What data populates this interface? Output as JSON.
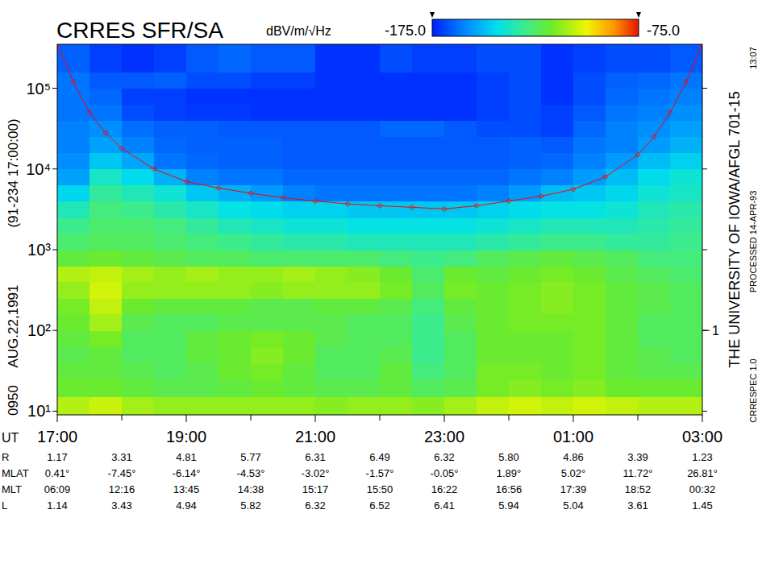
{
  "chart_data": {
    "type": "heatmap",
    "title": "CRRES SFR/SA",
    "x_label": "UT",
    "log": "y",
    "xlim": [
      17,
      27
    ],
    "xticks": [
      {
        "value": 17,
        "label": "17:00"
      },
      {
        "value": 19,
        "label": "19:00"
      },
      {
        "value": 21,
        "label": "21:00"
      },
      {
        "value": 23,
        "label": "23:00"
      },
      {
        "value": 25,
        "label": "01:00"
      },
      {
        "value": 27,
        "label": "03:00"
      }
    ],
    "x_minor_ticks": [
      18,
      20,
      22,
      24,
      26
    ],
    "ylim": [
      9,
      350000
    ],
    "yticks": [
      {
        "value": 10,
        "label": "10¹"
      },
      {
        "value": 100,
        "label": "10²"
      },
      {
        "value": 1000,
        "label": "10³"
      },
      {
        "value": 10000,
        "label": "10⁴"
      },
      {
        "value": 100000,
        "label": "10⁵"
      }
    ],
    "y2lim": [
      0.09,
      3500
    ],
    "y2ticks": [
      1
    ],
    "x_edges": [
      17,
      17.5,
      18,
      18.5,
      19,
      19.5,
      20,
      20.5,
      21,
      21.5,
      22,
      22.5,
      23,
      23.5,
      24,
      24.5,
      25,
      25.5,
      26,
      26.5,
      27
    ],
    "y_edges": [
      9,
      15,
      25,
      40,
      63,
      100,
      160,
      250,
      400,
      630,
      1000,
      1600,
      2500,
      4000,
      6300,
      10000,
      16000,
      25000,
      40000,
      63000,
      100000,
      160000,
      350000
    ],
    "cells": [
      [
        -108,
        -105,
        -110,
        -112,
        -112,
        -112,
        -112,
        -112,
        -114,
        -112,
        -112,
        -114,
        -110,
        -106,
        -104,
        -106,
        -104,
        -106,
        -108,
        -108
      ],
      [
        -118,
        -118,
        -120,
        -122,
        -122,
        -120,
        -118,
        -120,
        -122,
        -122,
        -120,
        -124,
        -122,
        -116,
        -114,
        -116,
        -114,
        -118,
        -118,
        -118
      ],
      [
        -120,
        -120,
        -122,
        -124,
        -122,
        -118,
        -116,
        -120,
        -124,
        -124,
        -120,
        -128,
        -124,
        -116,
        -116,
        -118,
        -116,
        -120,
        -122,
        -122
      ],
      [
        -122,
        -120,
        -124,
        -124,
        -120,
        -118,
        -114,
        -118,
        -124,
        -124,
        -122,
        -130,
        -124,
        -118,
        -118,
        -118,
        -116,
        -120,
        -122,
        -124
      ],
      [
        -120,
        -116,
        -124,
        -124,
        -120,
        -118,
        -116,
        -118,
        -122,
        -124,
        -124,
        -130,
        -124,
        -118,
        -118,
        -118,
        -116,
        -120,
        -124,
        -124
      ],
      [
        -118,
        -110,
        -122,
        -124,
        -124,
        -122,
        -122,
        -122,
        -122,
        -124,
        -124,
        -130,
        -122,
        -118,
        -116,
        -116,
        -116,
        -120,
        -124,
        -124
      ],
      [
        -116,
        -106,
        -118,
        -120,
        -120,
        -120,
        -122,
        -122,
        -120,
        -120,
        -122,
        -128,
        -120,
        -118,
        -116,
        -114,
        -116,
        -120,
        -122,
        -124
      ],
      [
        -112,
        -104,
        -112,
        -112,
        -112,
        -112,
        -114,
        -112,
        -112,
        -112,
        -116,
        -124,
        -116,
        -118,
        -116,
        -114,
        -116,
        -120,
        -122,
        -124
      ],
      [
        -108,
        -106,
        -110,
        -112,
        -110,
        -112,
        -112,
        -110,
        -112,
        -114,
        -118,
        -126,
        -118,
        -120,
        -118,
        -116,
        -118,
        -122,
        -124,
        -126
      ],
      [
        -120,
        -118,
        -120,
        -122,
        -124,
        -124,
        -126,
        -126,
        -126,
        -126,
        -128,
        -130,
        -128,
        -124,
        -122,
        -120,
        -122,
        -124,
        -128,
        -128
      ],
      [
        -126,
        -124,
        -124,
        -126,
        -128,
        -130,
        -132,
        -134,
        -134,
        -136,
        -136,
        -136,
        -136,
        -134,
        -132,
        -130,
        -130,
        -132,
        -132,
        -130
      ],
      [
        -130,
        -126,
        -126,
        -128,
        -132,
        -136,
        -138,
        -140,
        -140,
        -142,
        -142,
        -142,
        -142,
        -140,
        -138,
        -136,
        -136,
        -136,
        -134,
        -132
      ],
      [
        -136,
        -128,
        -130,
        -134,
        -138,
        -142,
        -144,
        -146,
        -146,
        -148,
        -148,
        -148,
        -148,
        -146,
        -144,
        -142,
        -142,
        -140,
        -136,
        -134
      ],
      [
        -145,
        -132,
        -136,
        -140,
        -148,
        -152,
        -156,
        -160,
        -162,
        -162,
        -162,
        -162,
        -162,
        -160,
        -156,
        -150,
        -148,
        -145,
        -140,
        -138
      ],
      [
        -155,
        -138,
        -144,
        -152,
        -160,
        -162,
        -162,
        -164,
        -164,
        -164,
        -164,
        -164,
        -164,
        -164,
        -162,
        -160,
        -156,
        -150,
        -144,
        -140
      ],
      [
        -158,
        -148,
        -154,
        -162,
        -164,
        -165,
        -165,
        -166,
        -166,
        -166,
        -166,
        -166,
        -166,
        -166,
        -165,
        -164,
        -160,
        -156,
        -150,
        -146
      ],
      [
        -160,
        -155,
        -160,
        -164,
        -165,
        -165,
        -165,
        -166,
        -166,
        -166,
        -166,
        -166,
        -166,
        -166,
        -165,
        -166,
        -162,
        -160,
        -156,
        -152
      ],
      [
        -160,
        -158,
        -163,
        -165,
        -165,
        -166,
        -166,
        -166,
        -166,
        -166,
        -164,
        -164,
        -166,
        -168,
        -168,
        -170,
        -164,
        -160,
        -158,
        -155
      ],
      [
        -162,
        -162,
        -168,
        -170,
        -171,
        -171,
        -172,
        -172,
        -172,
        -172,
        -172,
        -172,
        -172,
        -170,
        -168,
        -170,
        -166,
        -162,
        -160,
        -158
      ],
      [
        -162,
        -164,
        -170,
        -170,
        -172,
        -172,
        -172,
        -172,
        -172,
        -172,
        -172,
        -172,
        -172,
        -170,
        -168,
        -172,
        -168,
        -164,
        -162,
        -160
      ],
      [
        -162,
        -166,
        -166,
        -165,
        -168,
        -168,
        -170,
        -170,
        -172,
        -172,
        -172,
        -172,
        -172,
        -170,
        -168,
        -172,
        -168,
        -165,
        -164,
        -162
      ],
      [
        -165,
        -170,
        -172,
        -170,
        -166,
        -164,
        -166,
        -166,
        -172,
        -172,
        -168,
        -170,
        -170,
        -168,
        -168,
        -172,
        -170,
        -168,
        -168,
        -166
      ]
    ],
    "colorbar": {
      "label": "dBV/m/√Hz",
      "range": [
        -175,
        -75
      ],
      "ticks": [
        {
          "value": -175,
          "label": "-175.0"
        },
        {
          "value": -75,
          "label": "-75.0"
        }
      ]
    },
    "series": [
      {
        "type": "line",
        "color": "#ff0000",
        "marker": "diamond",
        "x": [
          17,
          17.25,
          17.5,
          17.75,
          18,
          18.5,
          19,
          19.5,
          20,
          20.5,
          21,
          21.5,
          22,
          22.5,
          23,
          23.5,
          24,
          24.5,
          25,
          25.5,
          26,
          26.25,
          26.5,
          26.75,
          27
        ],
        "values": [
          350000,
          120000,
          50000,
          28000,
          18000,
          10000,
          7000,
          5800,
          5000,
          4400,
          4000,
          3700,
          3500,
          3350,
          3200,
          3500,
          4000,
          4600,
          5600,
          8000,
          15000,
          25000,
          50000,
          120000,
          350000
        ]
      }
    ],
    "annotations": {
      "left": [
        "0950",
        "AUG.22,1991",
        "(91-234 17:00:00)"
      ],
      "right": "THE UNIVERSITY OF IOWA/AFGL 701-15",
      "right_small": [
        "CRRESPEC 1.0",
        "PROCESSED 14-APR-93",
        "13:07"
      ]
    },
    "ephemeris": {
      "x": [
        17,
        18,
        19,
        20,
        21,
        22,
        23,
        24,
        25,
        26,
        27
      ],
      "rows": [
        {
          "label": "R",
          "values": [
            "1.17",
            "3.31",
            "4.81",
            "5.77",
            "6.31",
            "6.49",
            "6.32",
            "5.80",
            "4.86",
            "3.39",
            "1.23"
          ]
        },
        {
          "label": "MLAT",
          "values": [
            "0.41°",
            "-7.45°",
            "-6.14°",
            "-4.53°",
            "-3.02°",
            "-1.57°",
            "-0.05°",
            "1.89°",
            "5.02°",
            "11.72°",
            "26.81°"
          ]
        },
        {
          "label": "MLT",
          "values": [
            "06:09",
            "12:16",
            "13:45",
            "14:38",
            "15:17",
            "15:50",
            "16:22",
            "16:56",
            "17:39",
            "18:52",
            "00:32"
          ]
        },
        {
          "label": "L",
          "values": [
            "1.14",
            "3.43",
            "4.94",
            "5.82",
            "6.32",
            "6.52",
            "6.41",
            "5.94",
            "5.04",
            "3.61",
            "1.45"
          ]
        }
      ]
    }
  }
}
